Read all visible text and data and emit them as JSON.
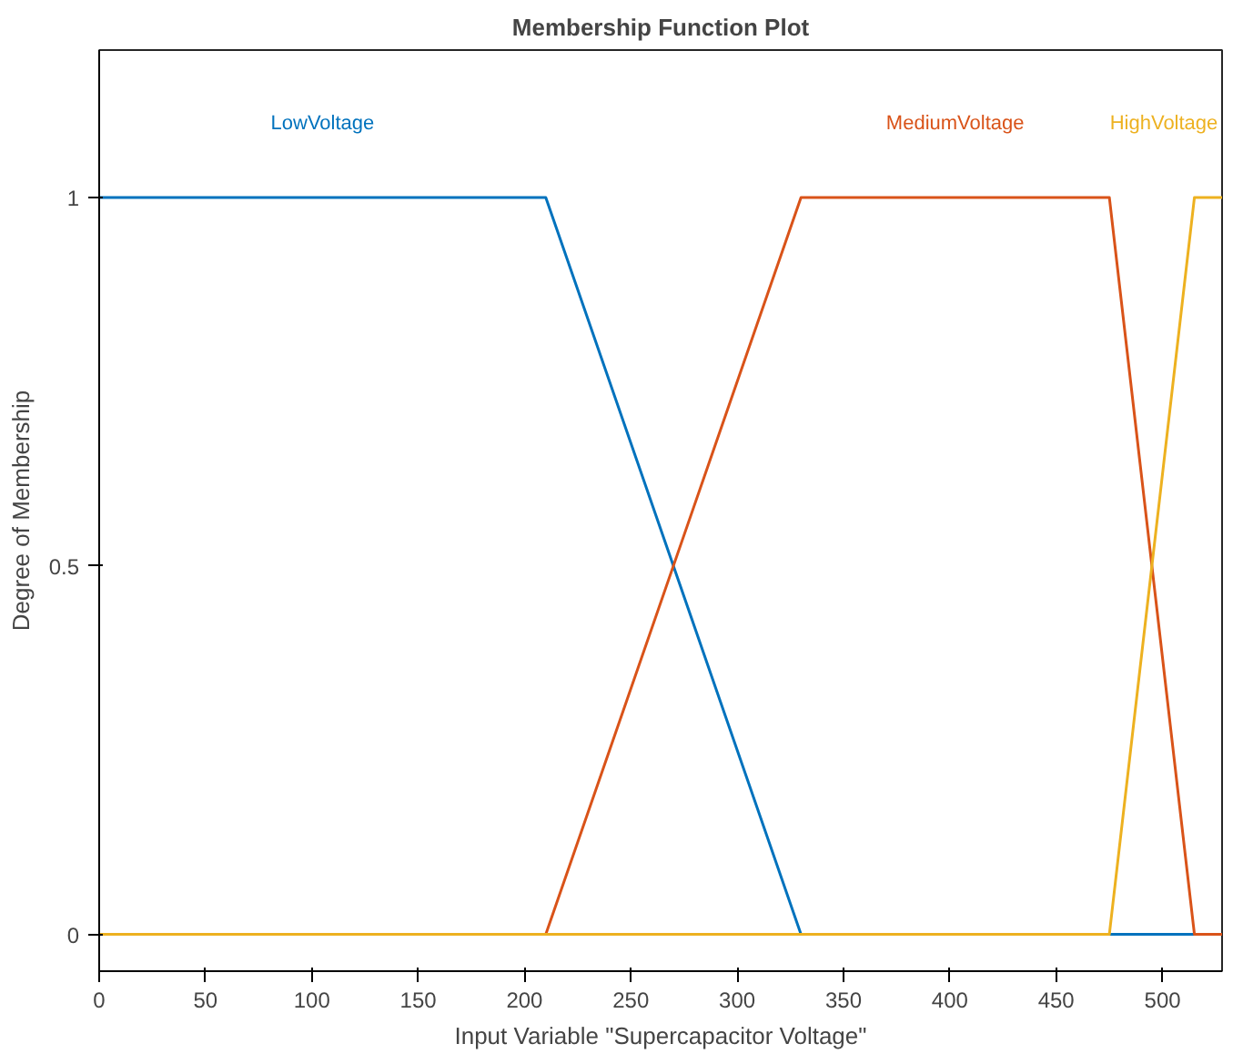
{
  "chart_data": {
    "type": "line",
    "title": "Membership Function Plot",
    "xlabel": "Input Variable \"Supercapacitor Voltage\"",
    "ylabel": "Degree of Membership",
    "xlim": [
      0,
      528
    ],
    "ylim": [
      -0.05,
      1.2
    ],
    "xticks": [
      0,
      50,
      100,
      150,
      200,
      250,
      300,
      350,
      400,
      450,
      500
    ],
    "yticks": [
      0,
      0.5,
      1
    ],
    "grid": false,
    "legend": false,
    "marker": "none",
    "line_style": "solid",
    "series": [
      {
        "name": "LowVoltage",
        "color": "#0072bd",
        "x": [
          0,
          210,
          330,
          528
        ],
        "values": [
          1,
          1,
          0,
          0
        ]
      },
      {
        "name": "MediumVoltage",
        "color": "#d95319",
        "x": [
          0,
          210,
          330,
          475,
          515,
          528
        ],
        "values": [
          0,
          0,
          1,
          1,
          0,
          0
        ]
      },
      {
        "name": "HighVoltage",
        "color": "#edb120",
        "x": [
          0,
          475,
          515,
          528
        ],
        "values": [
          0,
          0,
          1,
          1
        ]
      }
    ]
  }
}
